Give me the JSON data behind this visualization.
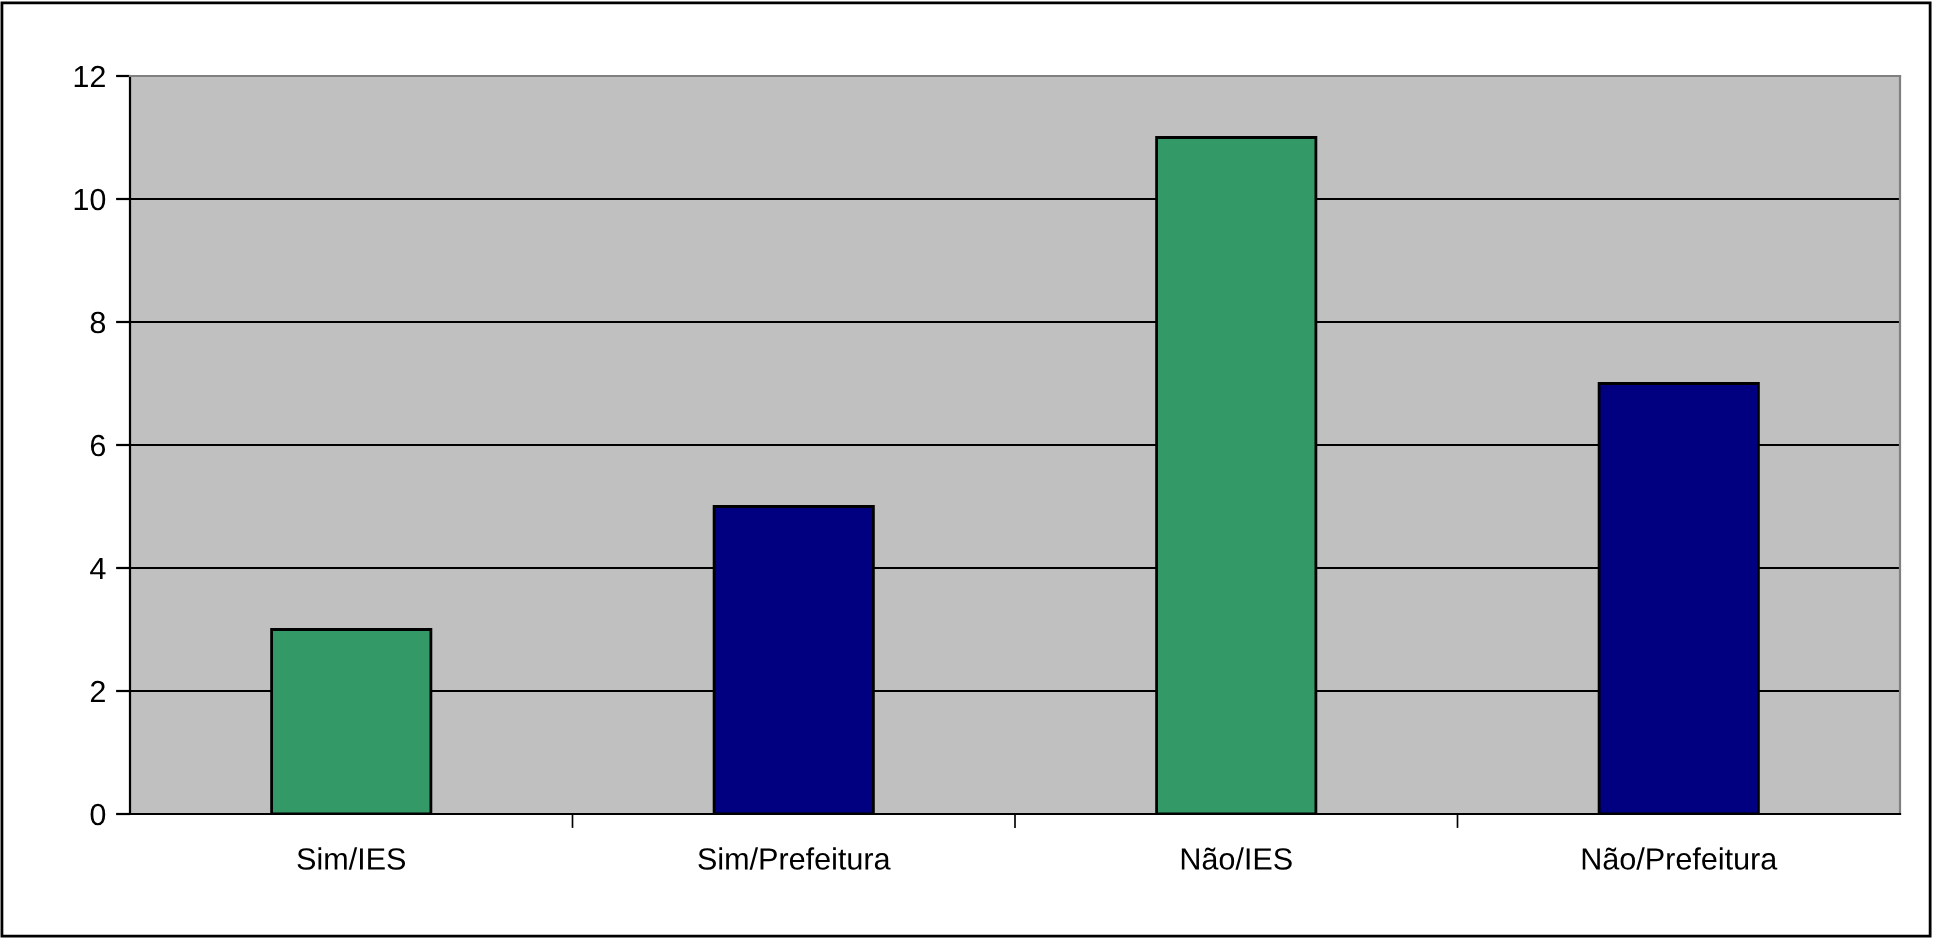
{
  "chart_data": {
    "type": "bar",
    "categories": [
      "Sim/IES",
      "Sim/Prefeitura",
      "Não/IES",
      "Não/Prefeitura"
    ],
    "values": [
      3,
      5,
      11,
      7
    ],
    "colors": [
      "#339966",
      "#000080",
      "#339966",
      "#000080"
    ],
    "ylim": [
      0,
      12
    ],
    "yticks": [
      0,
      2,
      4,
      6,
      8,
      10,
      12
    ],
    "grid": "y"
  }
}
